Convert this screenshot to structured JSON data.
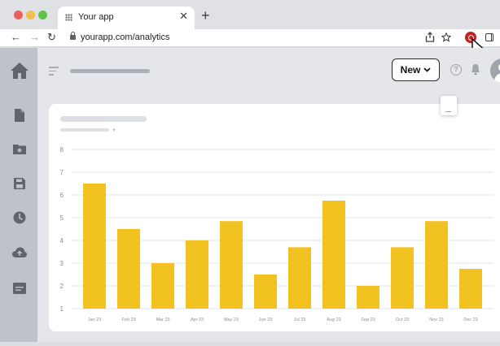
{
  "browser": {
    "tab_title": "Your app",
    "url": "yourapp.com/analytics"
  },
  "header": {
    "new_button_label": "New",
    "help_label": "?"
  },
  "icons": {
    "sidebar": [
      "home-icon",
      "document-icon",
      "starred-folder-icon",
      "save-icon",
      "clock-icon",
      "cloud-upload-icon",
      "card-icon"
    ]
  },
  "colors": {
    "accent_bar": "#f2c221",
    "sidebar": "#bfc2c9",
    "extension": "#c5221f"
  },
  "chart_data": {
    "type": "bar",
    "categories": [
      "Jan 23",
      "Feb 23",
      "Mar 23",
      "Apr 23",
      "May 23",
      "Jun 23",
      "Jul 23",
      "Aug 23",
      "Sep 23",
      "Oct 23",
      "Nov 23",
      "Dec 23"
    ],
    "values": [
      6.5,
      4.5,
      3.0,
      4.0,
      4.85,
      2.5,
      3.7,
      5.75,
      2.0,
      3.7,
      4.85,
      2.75
    ],
    "yticks": [
      1,
      2,
      3,
      4,
      5,
      6,
      7,
      8
    ],
    "ylim": [
      1,
      8
    ],
    "grid": true,
    "title": "",
    "xlabel": "",
    "ylabel": ""
  }
}
